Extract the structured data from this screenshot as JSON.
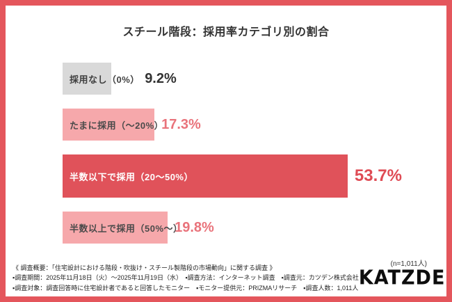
{
  "colors": {
    "frame": "#e4565c",
    "accent_red": "#e0525a",
    "light_pink": "#f6a8ab",
    "gray": "#d9d9d9"
  },
  "title": "スチール階段：採用率カテゴリ別の割合",
  "chart_data": {
    "type": "bar",
    "orientation": "horizontal",
    "title": "スチール階段：採用率カテゴリ別の割合",
    "categories": [
      "採用なし（0%）",
      "たまに採用（〜20%）",
      "半数以下で採用（20〜50%）",
      "半数以上で採用（50%〜）"
    ],
    "values": [
      9.2,
      17.3,
      53.7,
      19.8
    ],
    "value_labels": [
      "9.2%",
      "17.3%",
      "53.7%",
      "19.8%"
    ],
    "unit": "%",
    "xlim": [
      0,
      60
    ],
    "bar_colors": [
      "#d9d9d9",
      "#f6a8ab",
      "#e0525a",
      "#f6a8ab"
    ],
    "label_colors": [
      "#3f3f3f",
      "#4a4a4a",
      "#ffffff",
      "#4a4a4a"
    ],
    "value_colors": [
      "#333333",
      "#e9737b",
      "#df4b54",
      "#e9737b"
    ],
    "grid": false,
    "legend": false,
    "n_note": "(n=1,011人)"
  },
  "footer": {
    "lines": [
      "《 調査概要：「住宅設計における階段・吹抜け・スチール製階段の市場動向」に関する調査 》",
      "▪調査期間：2025年11月18日（火）〜2025年11月19日（水）　▪調査方法：インターネット調査　▪調査元：カツデン株式会社",
      "▪調査対象：調査回答時に住宅設計者であると回答したモニター　▪モニター提供元：PRIZMAリサーチ　▪調査人数：1,011人"
    ],
    "logo": "KATZDEN"
  }
}
